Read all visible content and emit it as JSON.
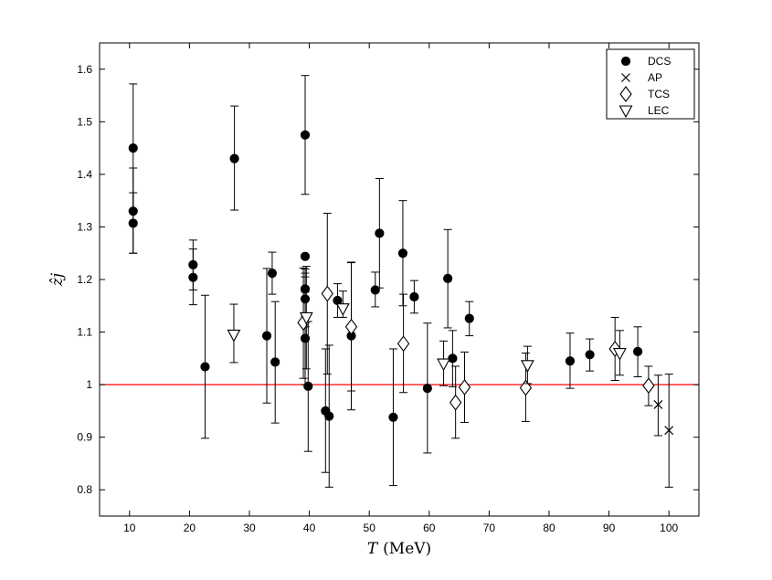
{
  "chart_data": {
    "type": "scatter",
    "xlabel_var": "T",
    "xlabel_unit": "(MeV)",
    "ylabel": "ẑj",
    "xlim": [
      5,
      105
    ],
    "ylim": [
      0.75,
      1.65
    ],
    "x_ticks": [
      10,
      20,
      30,
      40,
      50,
      60,
      70,
      80,
      90,
      100
    ],
    "y_ticks": [
      0.8,
      0.9,
      1,
      1.1,
      1.2,
      1.3,
      1.4,
      1.5,
      1.6
    ],
    "y_tick_labels": [
      "0.8",
      "0.9",
      "1",
      "1.1",
      "1.2",
      "1.3",
      "1.4",
      "1.5",
      "1.6"
    ],
    "reference_line": {
      "y": 1.0,
      "color": "#ff0000"
    },
    "grid": false,
    "legend_position": "top-right",
    "series": [
      {
        "name": "DCS",
        "marker": "filled-circle",
        "color": "#000000",
        "points": [
          {
            "x": 10.6,
            "y": 1.45,
            "lo": 1.33,
            "hi": 1.572
          },
          {
            "x": 10.6,
            "y": 1.33,
            "lo": 1.25,
            "hi": 1.412
          },
          {
            "x": 10.6,
            "y": 1.307,
            "lo": 1.25,
            "hi": 1.365
          },
          {
            "x": 20.6,
            "y": 1.228,
            "lo": 1.18,
            "hi": 1.275
          },
          {
            "x": 20.6,
            "y": 1.204,
            "lo": 1.152,
            "hi": 1.258
          },
          {
            "x": 22.6,
            "y": 1.034,
            "lo": 0.898,
            "hi": 1.17
          },
          {
            "x": 27.5,
            "y": 1.43,
            "lo": 1.332,
            "hi": 1.53
          },
          {
            "x": 32.9,
            "y": 1.093,
            "lo": 0.965,
            "hi": 1.221
          },
          {
            "x": 33.8,
            "y": 1.212,
            "lo": 1.172,
            "hi": 1.252
          },
          {
            "x": 34.3,
            "y": 1.043,
            "lo": 0.927,
            "hi": 1.158
          },
          {
            "x": 39.3,
            "y": 1.475,
            "lo": 1.362,
            "hi": 1.588
          },
          {
            "x": 39.3,
            "y": 1.244,
            "lo": 1.13,
            "hi": 1.22
          },
          {
            "x": 39.3,
            "y": 1.182,
            "lo": 1.11,
            "hi": 1.212
          },
          {
            "x": 39.3,
            "y": 1.163,
            "lo": 1.11,
            "hi": 1.205
          },
          {
            "x": 39.3,
            "y": 1.088,
            "lo": 1.0,
            "hi": 1.176
          },
          {
            "x": 39.8,
            "y": 0.997,
            "lo": 0.873,
            "hi": 1.12
          },
          {
            "x": 42.7,
            "y": 0.95,
            "lo": 0.833,
            "hi": 1.068
          },
          {
            "x": 43.3,
            "y": 0.94,
            "lo": 0.805,
            "hi": 1.075
          },
          {
            "x": 44.7,
            "y": 1.16,
            "lo": 1.128,
            "hi": 1.192
          },
          {
            "x": 47.0,
            "y": 1.093,
            "lo": 0.952,
            "hi": 1.232
          },
          {
            "x": 51.0,
            "y": 1.18,
            "lo": 1.148,
            "hi": 1.214
          },
          {
            "x": 51.7,
            "y": 1.288,
            "lo": 1.184,
            "hi": 1.392
          },
          {
            "x": 54.0,
            "y": 0.938,
            "lo": 0.808,
            "hi": 1.068
          },
          {
            "x": 55.6,
            "y": 1.25,
            "lo": 1.15,
            "hi": 1.35
          },
          {
            "x": 57.5,
            "y": 1.167,
            "lo": 1.136,
            "hi": 1.198
          },
          {
            "x": 59.7,
            "y": 0.993,
            "lo": 0.87,
            "hi": 1.117
          },
          {
            "x": 63.1,
            "y": 1.202,
            "lo": 1.108,
            "hi": 1.295
          },
          {
            "x": 63.9,
            "y": 1.05,
            "lo": 0.996,
            "hi": 1.103
          },
          {
            "x": 66.7,
            "y": 1.126,
            "lo": 1.093,
            "hi": 1.158
          },
          {
            "x": 83.5,
            "y": 1.045,
            "lo": 0.993,
            "hi": 1.098
          },
          {
            "x": 86.8,
            "y": 1.057,
            "lo": 1.026,
            "hi": 1.087
          },
          {
            "x": 94.8,
            "y": 1.063,
            "lo": 1.015,
            "hi": 1.11
          }
        ]
      },
      {
        "name": "AP",
        "marker": "cross",
        "color": "#000000",
        "points": [
          {
            "x": 98.2,
            "y": 0.962,
            "lo": 0.903,
            "hi": 1.018
          },
          {
            "x": 100.0,
            "y": 0.913,
            "lo": 0.805,
            "hi": 1.02
          }
        ]
      },
      {
        "name": "TCS",
        "marker": "open-diamond",
        "color": "#000000",
        "points": [
          {
            "x": 39.0,
            "y": 1.118,
            "lo": 1.012,
            "hi": 1.222
          },
          {
            "x": 43.0,
            "y": 1.173,
            "lo": 1.02,
            "hi": 1.326
          },
          {
            "x": 47.0,
            "y": 1.11,
            "lo": 0.988,
            "hi": 1.233
          },
          {
            "x": 55.7,
            "y": 1.078,
            "lo": 0.985,
            "hi": 1.172
          },
          {
            "x": 64.4,
            "y": 0.966,
            "lo": 0.898,
            "hi": 1.035
          },
          {
            "x": 65.9,
            "y": 0.995,
            "lo": 0.928,
            "hi": 1.062
          },
          {
            "x": 76.1,
            "y": 0.994,
            "lo": 0.93,
            "hi": 1.06
          },
          {
            "x": 91.0,
            "y": 1.068,
            "lo": 1.008,
            "hi": 1.128
          },
          {
            "x": 96.6,
            "y": 0.998,
            "lo": 0.96,
            "hi": 1.035
          }
        ]
      },
      {
        "name": "LEC",
        "marker": "open-triangle-down",
        "color": "#000000",
        "points": [
          {
            "x": 27.4,
            "y": 1.095,
            "lo": 1.042,
            "hi": 1.153
          },
          {
            "x": 39.5,
            "y": 1.128,
            "lo": 1.03,
            "hi": 1.225
          },
          {
            "x": 45.6,
            "y": 1.145,
            "lo": 1.128,
            "hi": 1.178
          },
          {
            "x": 62.4,
            "y": 1.04,
            "lo": 0.998,
            "hi": 1.083
          },
          {
            "x": 76.4,
            "y": 1.037,
            "lo": 1.002,
            "hi": 1.073
          },
          {
            "x": 91.8,
            "y": 1.06,
            "lo": 1.018,
            "hi": 1.103
          }
        ]
      }
    ]
  }
}
